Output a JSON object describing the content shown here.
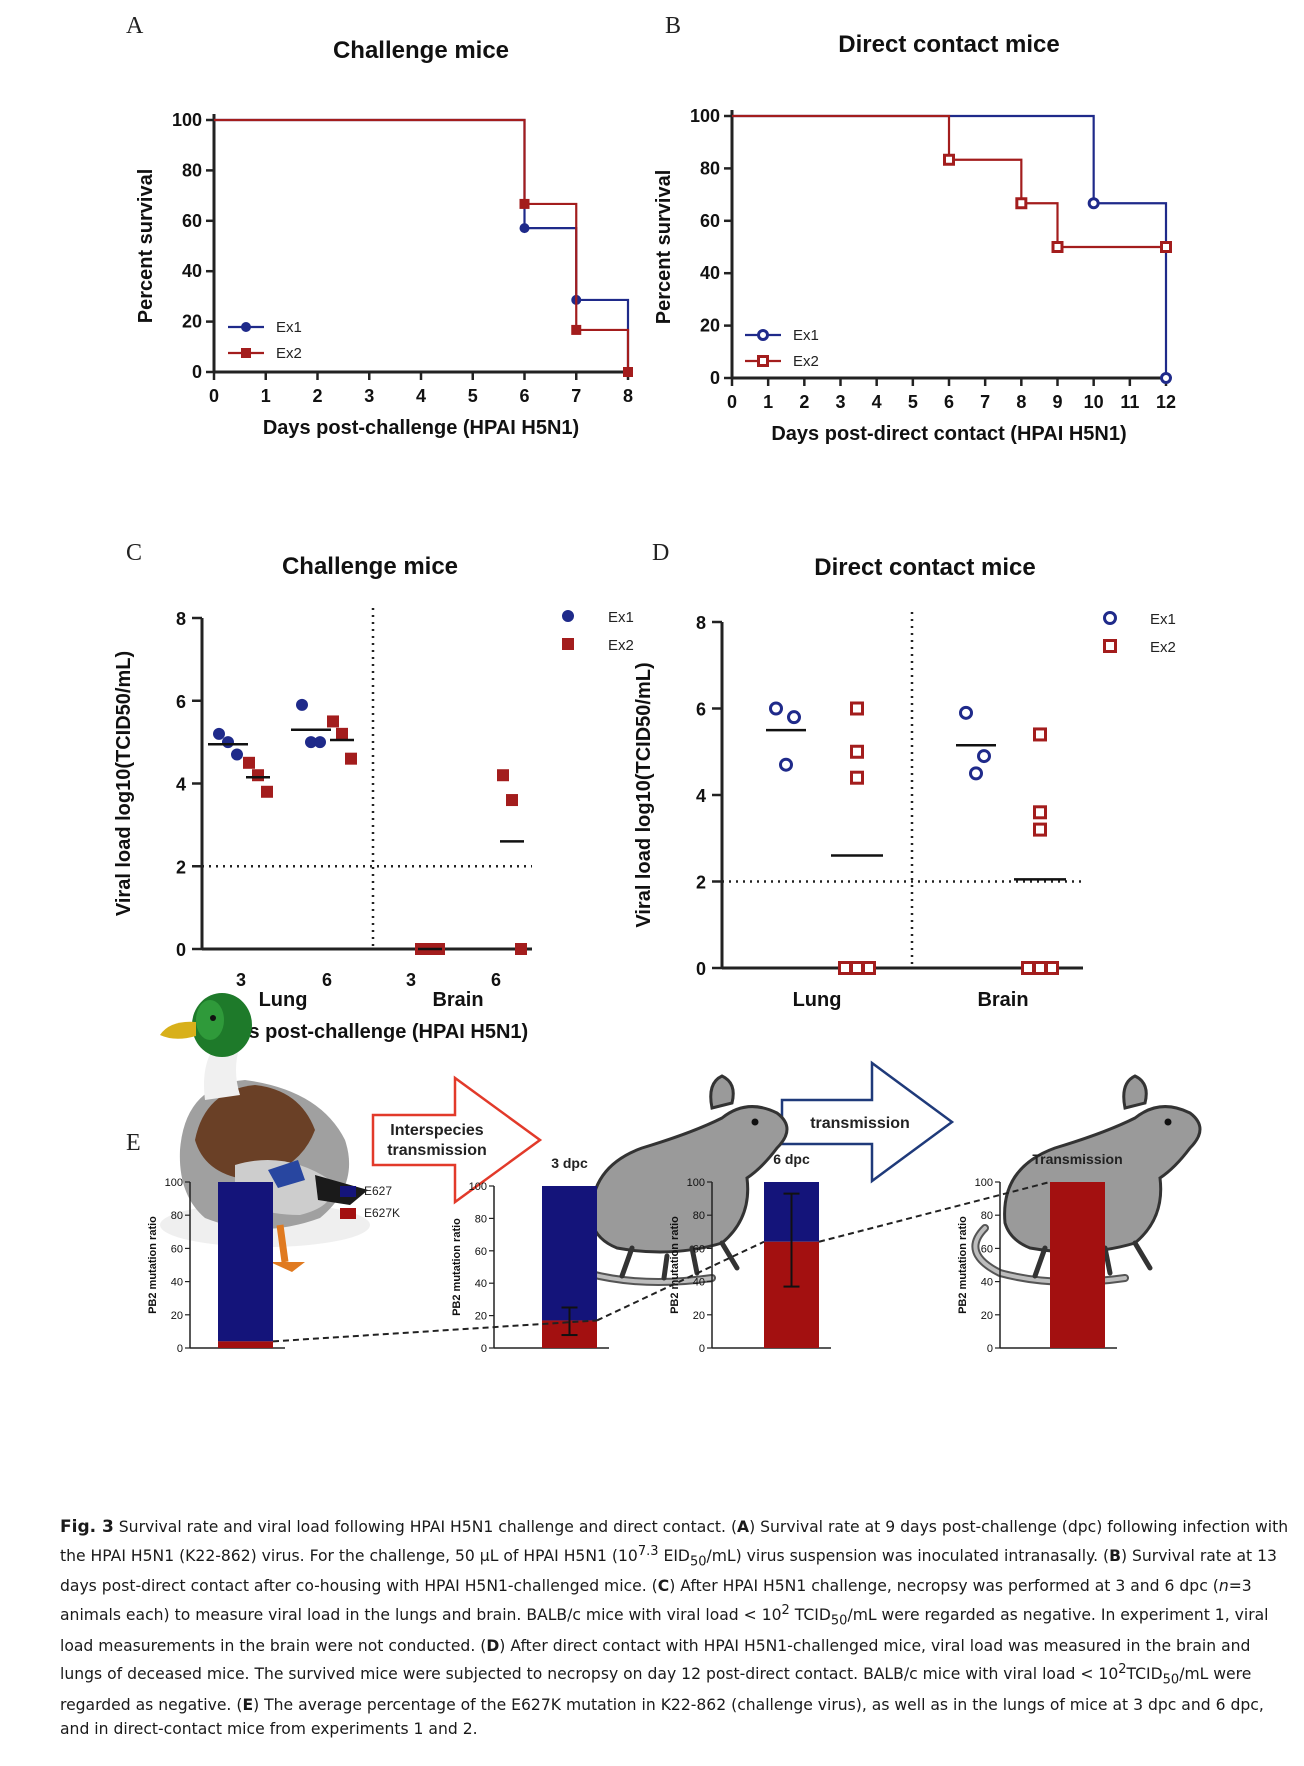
{
  "panels": {
    "A": {
      "letter": "A",
      "title": "Challenge mice",
      "xlabel": "Days post-challenge (HPAI H5N1)",
      "ylabel": "Percent survival",
      "xticks": [
        0,
        1,
        2,
        3,
        4,
        5,
        6,
        7,
        8
      ],
      "yticks": [
        0,
        20,
        40,
        60,
        80,
        100
      ],
      "legend": [
        "Ex1",
        "Ex2"
      ]
    },
    "B": {
      "letter": "B",
      "title": "Direct contact mice",
      "xlabel": "Days post-direct contact (HPAI H5N1)",
      "ylabel": "Percent survival",
      "xticks": [
        0,
        1,
        2,
        3,
        4,
        5,
        6,
        7,
        8,
        9,
        10,
        11,
        12
      ],
      "yticks": [
        0,
        20,
        40,
        60,
        80,
        100
      ],
      "legend": [
        "Ex1",
        "Ex2"
      ]
    },
    "C": {
      "letter": "C",
      "title": "Challenge mice",
      "ylabel": "Viral load log10(TCID50/mL)",
      "xlabel": "Days post-challenge (HPAI H5N1)",
      "group_labels": [
        "Lung",
        "Brain"
      ],
      "day_labels": [
        "3",
        "6",
        "3",
        "6"
      ],
      "yticks": [
        0,
        2,
        4,
        6,
        8
      ],
      "legend": [
        "Ex1",
        "Ex2"
      ]
    },
    "D": {
      "letter": "D",
      "title": "Direct contact mice",
      "ylabel": "Viral load log10(TCID50/mL)",
      "group_labels": [
        "Lung",
        "Brain"
      ],
      "yticks": [
        0,
        2,
        4,
        6,
        8
      ],
      "legend": [
        "Ex1",
        "Ex2"
      ]
    },
    "E": {
      "letter": "E",
      "arrow1_label_1": "Interspecies",
      "arrow1_label_2": "transmission",
      "arrow2_label": "transmission",
      "ylabel": "PB2 mutation ratio",
      "legend": [
        "E627",
        "E627K"
      ],
      "bar_titles": [
        "",
        "3 dpc",
        "6 dpc",
        "Transmission"
      ],
      "yticks": [
        0,
        20,
        40,
        60,
        80,
        100
      ]
    }
  },
  "chart_data": [
    {
      "panel": "A",
      "type": "line",
      "title": "Challenge mice",
      "xlabel": "Days post-challenge (HPAI H5N1)",
      "ylabel": "Percent survival",
      "xlim": [
        0,
        8
      ],
      "ylim": [
        0,
        100
      ],
      "series": [
        {
          "name": "Ex1",
          "color": "#1f2a8a",
          "step": [
            [
              0,
              100
            ],
            [
              6,
              100
            ],
            [
              6,
              57.1
            ],
            [
              7,
              57.1
            ],
            [
              7,
              28.6
            ],
            [
              8,
              28.6
            ],
            [
              8,
              0
            ]
          ],
          "markers": [
            [
              6,
              57.1
            ],
            [
              7,
              28.6
            ],
            [
              8,
              0
            ]
          ]
        },
        {
          "name": "Ex2",
          "color": "#a31d1d",
          "step": [
            [
              0,
              100
            ],
            [
              6,
              100
            ],
            [
              6,
              66.7
            ],
            [
              7,
              66.7
            ],
            [
              7,
              16.7
            ],
            [
              8,
              16.7
            ],
            [
              8,
              0
            ]
          ],
          "markers": [
            [
              6,
              66.7
            ],
            [
              7,
              16.7
            ],
            [
              8,
              0
            ]
          ]
        }
      ]
    },
    {
      "panel": "B",
      "type": "line",
      "title": "Direct contact mice",
      "xlabel": "Days post-direct contact (HPAI H5N1)",
      "ylabel": "Percent survival",
      "xlim": [
        0,
        12
      ],
      "ylim": [
        0,
        100
      ],
      "series": [
        {
          "name": "Ex1",
          "color": "#1f2a8a",
          "step": [
            [
              0,
              100
            ],
            [
              10,
              100
            ],
            [
              10,
              66.7
            ],
            [
              12,
              66.7
            ],
            [
              12,
              0
            ]
          ],
          "markers": [
            [
              10,
              66.7
            ],
            [
              12,
              0
            ]
          ]
        },
        {
          "name": "Ex2",
          "color": "#a31d1d",
          "step": [
            [
              0,
              100
            ],
            [
              6,
              100
            ],
            [
              6,
              83.3
            ],
            [
              8,
              83.3
            ],
            [
              8,
              66.7
            ],
            [
              9,
              66.7
            ],
            [
              9,
              50
            ],
            [
              12,
              50
            ]
          ],
          "markers": [
            [
              6,
              83.3
            ],
            [
              8,
              66.7
            ],
            [
              9,
              50
            ],
            [
              12,
              50
            ]
          ]
        }
      ]
    },
    {
      "panel": "C",
      "type": "scatter",
      "title": "Challenge mice",
      "ylim": [
        0,
        8
      ],
      "limit_of_detection": 2,
      "groups": [
        {
          "tissue": "Lung",
          "day": "3",
          "ex1": [
            5.2,
            5.0,
            4.7
          ],
          "ex1_mean": 4.95,
          "ex2": [
            4.5,
            4.2,
            3.8
          ],
          "ex2_mean": 4.15
        },
        {
          "tissue": "Lung",
          "day": "6",
          "ex1": [
            5.9,
            5.0,
            5.0
          ],
          "ex1_mean": 5.3,
          "ex2": [
            5.5,
            5.2,
            4.6
          ],
          "ex2_mean": 5.05
        },
        {
          "tissue": "Brain",
          "day": "3",
          "ex2": [
            0,
            0,
            0
          ],
          "ex2_mean": 0
        },
        {
          "tissue": "Brain",
          "day": "6",
          "ex2": [
            4.2,
            3.6,
            0
          ],
          "ex2_mean": 2.6
        }
      ]
    },
    {
      "panel": "D",
      "type": "scatter",
      "title": "Direct contact mice",
      "ylim": [
        0,
        8
      ],
      "limit_of_detection": 2,
      "groups": [
        {
          "tissue": "Lung",
          "ex1": [
            6.0,
            5.8,
            4.7
          ],
          "ex1_mean": 5.5,
          "ex2": [
            6.0,
            5.0,
            4.4,
            0,
            0,
            0
          ],
          "ex2_mean": 2.6
        },
        {
          "tissue": "Brain",
          "ex1": [
            5.9,
            4.9,
            4.5
          ],
          "ex1_mean": 5.15,
          "ex2": [
            5.4,
            3.6,
            3.2,
            0,
            0,
            0
          ],
          "ex2_mean": 2.05
        }
      ]
    },
    {
      "panel": "E",
      "type": "bar",
      "ylabel": "PB2 mutation ratio",
      "ylim": [
        0,
        100
      ],
      "categories": [
        "",
        "3 dpc",
        "6 dpc",
        "Transmission"
      ],
      "series": [
        {
          "name": "E627K",
          "color": "#a31010",
          "values": [
            4,
            17,
            64,
            100
          ],
          "error": [
            null,
            [
              8,
              25
            ],
            [
              37,
              93
            ],
            null
          ]
        },
        {
          "name": "E627",
          "color": "#14147a",
          "values": [
            96,
            83,
            36,
            0
          ]
        }
      ]
    }
  ],
  "caption": {
    "fig_label": "Fig. 3",
    "intro": " Survival rate and viral load following HPAI H5N1 challenge and direct contact. (",
    "a_label": "A",
    "a_text": ") Survival rate at 9 days post-challenge (dpc) following infection with the HPAI H5N1 (K22-862) virus. For the challenge, 50 µL of HPAI H5N1 (10",
    "a_sup": "7.3",
    "a_text2": " EID",
    "a_sub": "50",
    "a_text3": "/mL) virus suspension was inoculated intranasally. (",
    "b_label": "B",
    "b_text": ") Survival rate at 13 days post-direct contact after co-housing with HPAI H5N1-challenged mice. (",
    "c_label": "C",
    "c_text": ") After HPAI H5N1 challenge, necropsy was performed at 3 and 6 dpc (",
    "c_n": "n",
    "c_text2": "=3 animals each) to measure viral load in the lungs and brain. BALB/c mice with viral load < 10",
    "c_sup": "2",
    "c_text3": " TCID",
    "c_sub": "50",
    "c_text4": "/mL were regarded as negative. In experiment 1, viral load measurements in the brain were not conducted. (",
    "d_label": "D",
    "d_text": ") After direct contact with HPAI H5N1-challenged mice, viral load was measured in the brain and lungs of deceased mice. The survived mice were subjected to necropsy on day 12 post-direct contact. BALB/c mice with viral load < 10",
    "d_sup": "2",
    "d_text2": "TCID",
    "d_sub": "50",
    "d_text3": "/mL were regarded as negative. (",
    "e_label": "E",
    "e_text": ") The average percentage of the E627K mutation in K22-862 (challenge virus), as well as in the lungs of mice at 3 dpc and 6 dpc, and in direct-contact mice from experiments 1 and 2."
  }
}
